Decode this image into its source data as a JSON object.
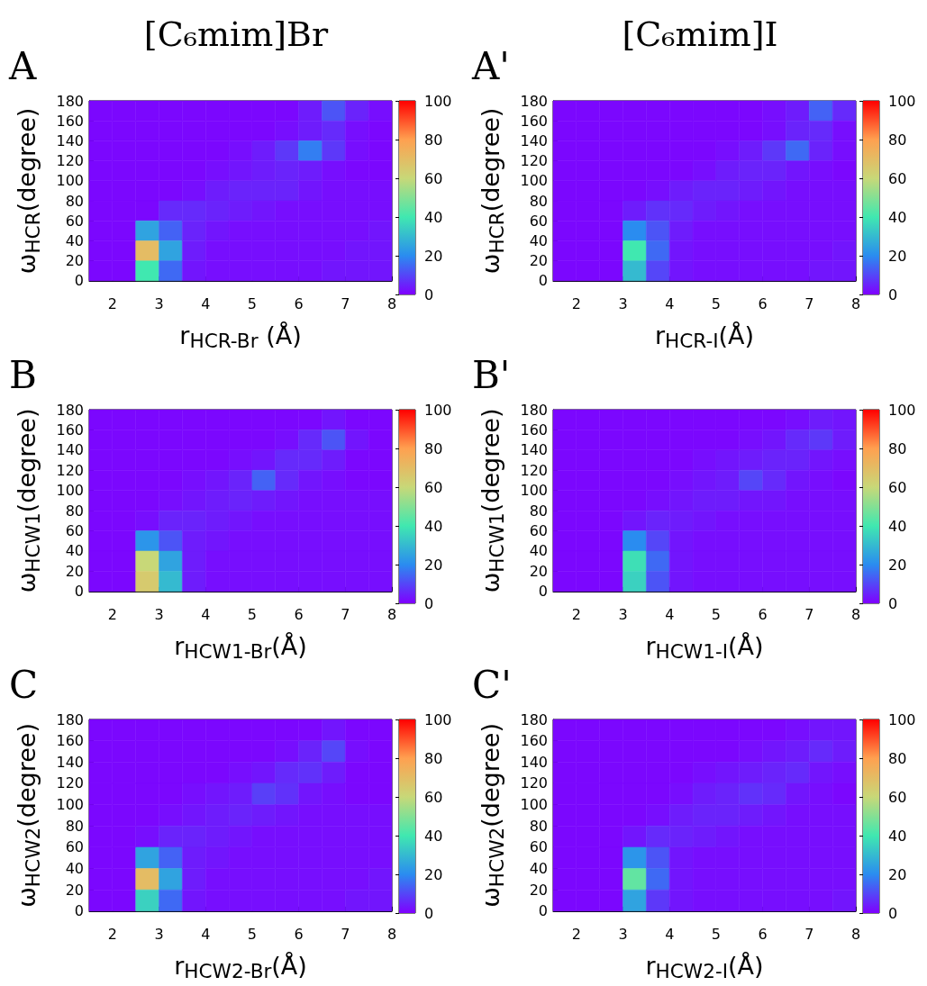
{
  "chart_data": [
    {
      "type": "heatmap",
      "title": "[C₆mim]Br",
      "annotations": [
        "A"
      ],
      "xlabel": "r$_{HCR-Br}$ (Å)",
      "ylabel": "ω$_{HCR}$(degree)",
      "xlim": [
        1.5,
        8
      ],
      "ylim": [
        0,
        180
      ],
      "xticks": [
        2,
        3,
        4,
        5,
        6,
        7,
        8
      ],
      "yticks": [
        0,
        20,
        40,
        60,
        80,
        100,
        120,
        140,
        160,
        180
      ],
      "clim": [
        0,
        100
      ],
      "cticks": [
        0,
        20,
        40,
        60,
        80,
        100
      ],
      "x": [
        1.75,
        2.25,
        2.75,
        3.25,
        3.75,
        4.25,
        4.75,
        5.25,
        5.75,
        6.25,
        6.75,
        7.25,
        7.75
      ],
      "y": [
        170,
        150,
        130,
        110,
        90,
        70,
        50,
        30,
        10
      ],
      "cells": [
        [
          1,
          1,
          1,
          1,
          1,
          1,
          1,
          1,
          1,
          4,
          12,
          5,
          2
        ],
        [
          1,
          1,
          1,
          1,
          1,
          1,
          1,
          1,
          2,
          4,
          6,
          2,
          1
        ],
        [
          1,
          1,
          1,
          1,
          1,
          1,
          2,
          4,
          8,
          18,
          8,
          2,
          1
        ],
        [
          1,
          1,
          1,
          1,
          1,
          2,
          3,
          4,
          5,
          4,
          2,
          1,
          1
        ],
        [
          1,
          1,
          1,
          1,
          2,
          4,
          5,
          5,
          5,
          3,
          2,
          2,
          2
        ],
        [
          1,
          1,
          1,
          6,
          6,
          5,
          4,
          3,
          2,
          2,
          2,
          2,
          2
        ],
        [
          1,
          1,
          25,
          14,
          5,
          3,
          2,
          2,
          2,
          2,
          2,
          2,
          3
        ],
        [
          1,
          1,
          70,
          25,
          4,
          2,
          2,
          2,
          2,
          2,
          2,
          3,
          3
        ],
        [
          1,
          1,
          40,
          15,
          3,
          2,
          2,
          2,
          2,
          2,
          3,
          3,
          3
        ]
      ]
    },
    {
      "type": "heatmap",
      "title": "[C₆mim]I",
      "annotations": [
        "A'"
      ],
      "xlabel": "r$_{HCR-I}$(Å)",
      "ylabel": "ω$_{HCR}$(degree)",
      "xlim": [
        1.5,
        8
      ],
      "ylim": [
        0,
        180
      ],
      "xticks": [
        2,
        3,
        4,
        5,
        6,
        7,
        8
      ],
      "yticks": [
        0,
        20,
        40,
        60,
        80,
        100,
        120,
        140,
        160,
        180
      ],
      "clim": [
        0,
        100
      ],
      "cticks": [
        0,
        20,
        40,
        60,
        80,
        100
      ],
      "x": [
        1.75,
        2.25,
        2.75,
        3.25,
        3.75,
        4.25,
        4.75,
        5.25,
        5.75,
        6.25,
        6.75,
        7.25,
        7.75
      ],
      "y": [
        170,
        150,
        130,
        110,
        90,
        70,
        50,
        30,
        10
      ],
      "cells": [
        [
          1,
          1,
          1,
          1,
          1,
          1,
          1,
          1,
          1,
          2,
          4,
          14,
          6
        ],
        [
          1,
          1,
          1,
          1,
          1,
          1,
          1,
          1,
          1,
          2,
          5,
          6,
          2
        ],
        [
          1,
          1,
          1,
          1,
          1,
          1,
          1,
          2,
          4,
          8,
          15,
          5,
          2
        ],
        [
          1,
          1,
          1,
          1,
          1,
          1,
          2,
          4,
          5,
          5,
          3,
          2,
          1
        ],
        [
          1,
          1,
          1,
          1,
          2,
          4,
          5,
          5,
          4,
          3,
          2,
          2,
          2
        ],
        [
          1,
          1,
          1,
          4,
          7,
          6,
          4,
          3,
          2,
          2,
          2,
          2,
          2
        ],
        [
          1,
          1,
          1,
          20,
          12,
          4,
          2,
          2,
          2,
          2,
          2,
          2,
          2
        ],
        [
          1,
          1,
          1,
          40,
          15,
          3,
          2,
          2,
          2,
          2,
          2,
          2,
          3
        ],
        [
          1,
          1,
          1,
          30,
          10,
          3,
          2,
          2,
          2,
          2,
          2,
          3,
          3
        ]
      ]
    },
    {
      "type": "heatmap",
      "annotations": [
        "B"
      ],
      "xlabel": "r$_{HCW1-Br}$(Å)",
      "ylabel": "ω$_{HCW1}$(degree)",
      "xlim": [
        1.5,
        8
      ],
      "ylim": [
        0,
        180
      ],
      "xticks": [
        2,
        3,
        4,
        5,
        6,
        7,
        8
      ],
      "yticks": [
        0,
        20,
        40,
        60,
        80,
        100,
        120,
        140,
        160,
        180
      ],
      "clim": [
        0,
        100
      ],
      "cticks": [
        0,
        20,
        40,
        60,
        80,
        100
      ],
      "x": [
        1.75,
        2.25,
        2.75,
        3.25,
        3.75,
        4.25,
        4.75,
        5.25,
        5.75,
        6.25,
        6.75,
        7.25,
        7.75
      ],
      "y": [
        170,
        150,
        130,
        110,
        90,
        70,
        50,
        30,
        10
      ],
      "cells": [
        [
          1,
          1,
          1,
          1,
          1,
          1,
          1,
          1,
          1,
          1,
          3,
          1,
          1
        ],
        [
          1,
          1,
          1,
          1,
          1,
          1,
          1,
          1,
          2,
          6,
          12,
          3,
          1
        ],
        [
          1,
          1,
          1,
          1,
          1,
          1,
          2,
          3,
          6,
          6,
          4,
          1,
          1
        ],
        [
          1,
          1,
          1,
          1,
          2,
          3,
          5,
          14,
          6,
          3,
          2,
          1,
          1
        ],
        [
          1,
          1,
          1,
          2,
          3,
          4,
          5,
          4,
          3,
          2,
          2,
          2,
          2
        ],
        [
          1,
          1,
          2,
          5,
          5,
          4,
          3,
          2,
          2,
          2,
          2,
          2,
          2
        ],
        [
          1,
          1,
          22,
          12,
          4,
          3,
          2,
          2,
          2,
          2,
          2,
          2,
          2
        ],
        [
          1,
          1,
          60,
          25,
          4,
          2,
          2,
          2,
          2,
          2,
          2,
          2,
          2
        ],
        [
          1,
          1,
          65,
          30,
          4,
          2,
          2,
          2,
          2,
          2,
          2,
          2,
          2
        ]
      ]
    },
    {
      "type": "heatmap",
      "annotations": [
        "B'"
      ],
      "xlabel": "r$_{HCW1-I}$(Å)",
      "ylabel": "ω$_{HCW1}$(degree)",
      "xlim": [
        1.5,
        8
      ],
      "ylim": [
        0,
        180
      ],
      "xticks": [
        2,
        3,
        4,
        5,
        6,
        7,
        8
      ],
      "yticks": [
        0,
        20,
        40,
        60,
        80,
        100,
        120,
        140,
        160,
        180
      ],
      "clim": [
        0,
        100
      ],
      "cticks": [
        0,
        20,
        40,
        60,
        80,
        100
      ],
      "x": [
        1.75,
        2.25,
        2.75,
        3.25,
        3.75,
        4.25,
        4.75,
        5.25,
        5.75,
        6.25,
        6.75,
        7.25,
        7.75
      ],
      "y": [
        170,
        150,
        130,
        110,
        90,
        70,
        50,
        30,
        10
      ],
      "cells": [
        [
          1,
          1,
          1,
          1,
          1,
          1,
          1,
          1,
          1,
          1,
          2,
          4,
          3
        ],
        [
          1,
          1,
          1,
          1,
          1,
          1,
          1,
          1,
          2,
          3,
          6,
          8,
          4
        ],
        [
          1,
          1,
          1,
          1,
          1,
          1,
          2,
          3,
          4,
          5,
          5,
          3,
          2
        ],
        [
          1,
          1,
          1,
          1,
          1,
          2,
          3,
          4,
          10,
          6,
          3,
          2,
          1
        ],
        [
          1,
          1,
          1,
          1,
          2,
          3,
          4,
          4,
          3,
          3,
          2,
          2,
          2
        ],
        [
          1,
          1,
          1,
          3,
          5,
          4,
          3,
          2,
          2,
          2,
          2,
          2,
          2
        ],
        [
          1,
          1,
          1,
          20,
          10,
          3,
          2,
          2,
          2,
          2,
          2,
          2,
          2
        ],
        [
          1,
          1,
          1,
          38,
          15,
          3,
          2,
          2,
          2,
          2,
          2,
          2,
          2
        ],
        [
          1,
          1,
          1,
          35,
          12,
          3,
          2,
          2,
          2,
          2,
          2,
          2,
          2
        ]
      ]
    },
    {
      "type": "heatmap",
      "annotations": [
        "C"
      ],
      "xlabel": "r$_{HCW2-Br}$(Å)",
      "ylabel": "ω$_{HCW2}$(degree)",
      "xlim": [
        1.5,
        8
      ],
      "ylim": [
        0,
        180
      ],
      "xticks": [
        2,
        3,
        4,
        5,
        6,
        7,
        8
      ],
      "yticks": [
        0,
        20,
        40,
        60,
        80,
        100,
        120,
        140,
        160,
        180
      ],
      "clim": [
        0,
        100
      ],
      "cticks": [
        0,
        20,
        40,
        60,
        80,
        100
      ],
      "x": [
        1.75,
        2.25,
        2.75,
        3.25,
        3.75,
        4.25,
        4.75,
        5.25,
        5.75,
        6.25,
        6.75,
        7.25,
        7.75
      ],
      "y": [
        170,
        150,
        130,
        110,
        90,
        70,
        50,
        30,
        10
      ],
      "cells": [
        [
          1,
          1,
          1,
          1,
          1,
          1,
          1,
          1,
          1,
          1,
          3,
          1,
          1
        ],
        [
          1,
          1,
          1,
          1,
          1,
          1,
          1,
          1,
          2,
          5,
          10,
          2,
          1
        ],
        [
          1,
          1,
          1,
          1,
          1,
          1,
          2,
          3,
          6,
          7,
          4,
          1,
          1
        ],
        [
          1,
          1,
          1,
          1,
          2,
          3,
          4,
          9,
          7,
          3,
          2,
          1,
          1
        ],
        [
          1,
          1,
          1,
          2,
          3,
          4,
          5,
          4,
          3,
          2,
          2,
          2,
          2
        ],
        [
          1,
          1,
          2,
          5,
          5,
          4,
          3,
          2,
          2,
          2,
          2,
          2,
          2
        ],
        [
          1,
          1,
          25,
          14,
          4,
          3,
          2,
          2,
          2,
          2,
          2,
          2,
          2
        ],
        [
          1,
          1,
          70,
          25,
          4,
          2,
          2,
          2,
          2,
          2,
          2,
          2,
          3
        ],
        [
          1,
          1,
          35,
          15,
          3,
          2,
          2,
          2,
          2,
          2,
          2,
          3,
          3
        ]
      ]
    },
    {
      "type": "heatmap",
      "annotations": [
        "C'"
      ],
      "xlabel": "r$_{HCW2-I}$(Å)",
      "ylabel": "ω$_{HCW2}$(degree)",
      "xlim": [
        1.5,
        8
      ],
      "ylim": [
        0,
        180
      ],
      "xticks": [
        2,
        3,
        4,
        5,
        6,
        7,
        8
      ],
      "yticks": [
        0,
        20,
        40,
        60,
        80,
        100,
        120,
        140,
        160,
        180
      ],
      "clim": [
        0,
        100
      ],
      "cticks": [
        0,
        20,
        40,
        60,
        80,
        100
      ],
      "x": [
        1.75,
        2.25,
        2.75,
        3.25,
        3.75,
        4.25,
        4.75,
        5.25,
        5.75,
        6.25,
        6.75,
        7.25,
        7.75
      ],
      "y": [
        170,
        150,
        130,
        110,
        90,
        70,
        50,
        30,
        10
      ],
      "cells": [
        [
          1,
          1,
          1,
          1,
          1,
          1,
          1,
          1,
          1,
          1,
          2,
          3,
          3
        ],
        [
          1,
          1,
          1,
          1,
          1,
          1,
          1,
          1,
          2,
          3,
          4,
          6,
          4
        ],
        [
          1,
          1,
          1,
          1,
          1,
          1,
          2,
          3,
          4,
          5,
          6,
          3,
          2
        ],
        [
          1,
          1,
          1,
          1,
          1,
          2,
          4,
          5,
          7,
          6,
          3,
          2,
          1
        ],
        [
          1,
          1,
          1,
          1,
          2,
          4,
          5,
          5,
          4,
          3,
          2,
          2,
          2
        ],
        [
          1,
          1,
          1,
          3,
          6,
          5,
          4,
          3,
          2,
          2,
          2,
          2,
          2
        ],
        [
          1,
          1,
          1,
          22,
          12,
          3,
          2,
          2,
          2,
          2,
          2,
          2,
          2
        ],
        [
          1,
          1,
          1,
          45,
          15,
          3,
          2,
          2,
          2,
          2,
          2,
          2,
          2
        ],
        [
          1,
          1,
          1,
          25,
          8,
          3,
          2,
          2,
          2,
          2,
          2,
          2,
          3
        ]
      ]
    }
  ]
}
